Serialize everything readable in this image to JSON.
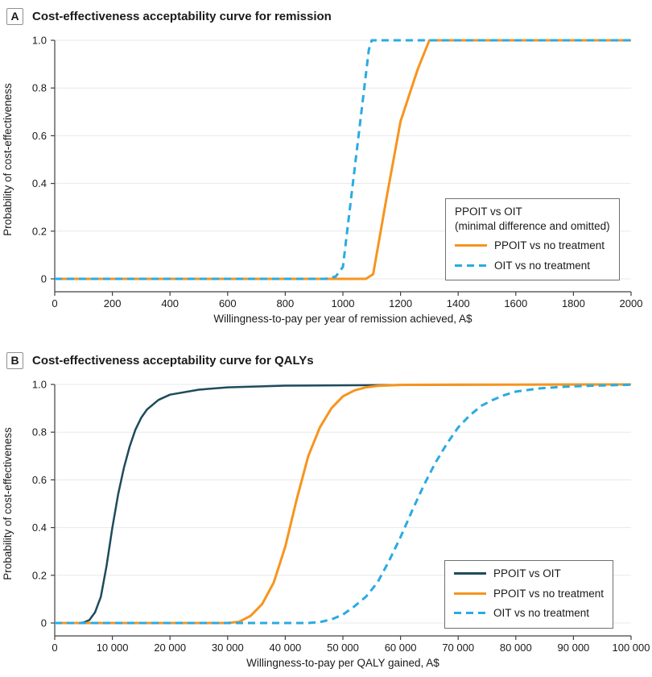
{
  "colors": {
    "orange": "#F7941E",
    "light_blue": "#29ABE2",
    "dark_navy": "#1E4B5C",
    "grid": "#E8E8E8",
    "axis": "#404040",
    "text": "#1A1A1A",
    "legend_border": "#707070",
    "panel_box_border": "#909090"
  },
  "chart_data": [
    {
      "type": "line",
      "panel_label": "A",
      "title": "Cost-effectiveness acceptability curve for remission",
      "xlabel": "Willingness-to-pay per year of remission achieved, A$",
      "ylabel": "Probability of cost-effectiveness",
      "xlim": [
        0,
        2000
      ],
      "ylim": [
        0,
        1.0
      ],
      "grid": true,
      "x_ticks": [
        0,
        200,
        400,
        600,
        800,
        1000,
        1200,
        1400,
        1600,
        1800,
        2000
      ],
      "x_tick_labels": [
        "0",
        "200",
        "400",
        "600",
        "800",
        "1000",
        "1200",
        "1400",
        "1600",
        "1800",
        "2000"
      ],
      "y_ticks": [
        0,
        0.2,
        0.4,
        0.6,
        0.8,
        1.0
      ],
      "y_tick_labels": [
        "0",
        "0.2",
        "0.4",
        "0.6",
        "0.8",
        "1.0"
      ],
      "legend": {
        "position": "right-center",
        "header_lines": [
          "PPOIT vs OIT",
          "(minimal difference and omitted)"
        ],
        "entries": [
          {
            "label": "PPOIT vs no treatment",
            "color": "#F7941E",
            "dash": false
          },
          {
            "label": "OIT vs no treatment",
            "color": "#29ABE2",
            "dash": true
          }
        ]
      },
      "series": [
        {
          "name": "PPOIT vs no treatment",
          "color": "#F7941E",
          "dash": false,
          "width": 3,
          "points": [
            [
              0,
              0
            ],
            [
              1000,
              0
            ],
            [
              1080,
              0
            ],
            [
              1105,
              0.02
            ],
            [
              1150,
              0.33
            ],
            [
              1200,
              0.66
            ],
            [
              1260,
              0.88
            ],
            [
              1300,
              1.0
            ],
            [
              2000,
              1.0
            ]
          ]
        },
        {
          "name": "OIT vs no treatment",
          "color": "#29ABE2",
          "dash": true,
          "width": 3,
          "points": [
            [
              0,
              0
            ],
            [
              940,
              0
            ],
            [
              975,
              0.01
            ],
            [
              1000,
              0.05
            ],
            [
              1090,
              0.96
            ],
            [
              1100,
              1.0
            ],
            [
              2000,
              1.0
            ]
          ]
        }
      ]
    },
    {
      "type": "line",
      "panel_label": "B",
      "title": "Cost-effectiveness acceptability curve for QALYs",
      "xlabel": "Willingness-to-pay per QALY gained, A$",
      "ylabel": "Probability of cost-effectiveness",
      "xlim": [
        0,
        100000
      ],
      "ylim": [
        0,
        1.0
      ],
      "grid": true,
      "x_ticks": [
        0,
        10000,
        20000,
        30000,
        40000,
        50000,
        60000,
        70000,
        80000,
        90000,
        100000
      ],
      "x_tick_labels": [
        "0",
        "10 000",
        "20 000",
        "30 000",
        "40 000",
        "50 000",
        "60 000",
        "70 000",
        "80 000",
        "90 000",
        "100 000"
      ],
      "y_ticks": [
        0,
        0.2,
        0.4,
        0.6,
        0.8,
        1.0
      ],
      "y_tick_labels": [
        "0",
        "0.2",
        "0.4",
        "0.6",
        "0.8",
        "1.0"
      ],
      "legend": {
        "position": "right-lower",
        "header_lines": [],
        "entries": [
          {
            "label": "PPOIT vs OIT",
            "color": "#1E4B5C",
            "dash": false
          },
          {
            "label": "PPOIT vs no treatment",
            "color": "#F7941E",
            "dash": false
          },
          {
            "label": "OIT vs no treatment",
            "color": "#29ABE2",
            "dash": true
          }
        ]
      },
      "series": [
        {
          "name": "PPOIT vs OIT",
          "color": "#1E4B5C",
          "dash": false,
          "width": 2.5,
          "points": [
            [
              0,
              0
            ],
            [
              4000,
              0
            ],
            [
              5000,
              0.002
            ],
            [
              6000,
              0.012
            ],
            [
              7000,
              0.045
            ],
            [
              8000,
              0.11
            ],
            [
              9000,
              0.24
            ],
            [
              10000,
              0.4
            ],
            [
              11000,
              0.54
            ],
            [
              12000,
              0.65
            ],
            [
              13000,
              0.74
            ],
            [
              14000,
              0.81
            ],
            [
              15000,
              0.86
            ],
            [
              16000,
              0.895
            ],
            [
              18000,
              0.935
            ],
            [
              20000,
              0.957
            ],
            [
              25000,
              0.978
            ],
            [
              30000,
              0.988
            ],
            [
              40000,
              0.995
            ],
            [
              60000,
              0.998
            ],
            [
              100000,
              1.0
            ]
          ]
        },
        {
          "name": "PPOIT vs no treatment",
          "color": "#F7941E",
          "dash": false,
          "width": 3,
          "points": [
            [
              0,
              0
            ],
            [
              30000,
              0
            ],
            [
              32000,
              0.005
            ],
            [
              34000,
              0.03
            ],
            [
              36000,
              0.08
            ],
            [
              38000,
              0.17
            ],
            [
              40000,
              0.32
            ],
            [
              42000,
              0.52
            ],
            [
              44000,
              0.7
            ],
            [
              46000,
              0.82
            ],
            [
              48000,
              0.9
            ],
            [
              50000,
              0.95
            ],
            [
              52000,
              0.975
            ],
            [
              54000,
              0.988
            ],
            [
              56000,
              0.994
            ],
            [
              60000,
              0.998
            ],
            [
              70000,
              0.999
            ],
            [
              100000,
              1.0
            ]
          ]
        },
        {
          "name": "OIT vs no treatment",
          "color": "#29ABE2",
          "dash": true,
          "width": 3,
          "points": [
            [
              0,
              0
            ],
            [
              44000,
              0
            ],
            [
              46000,
              0.004
            ],
            [
              48000,
              0.015
            ],
            [
              50000,
              0.035
            ],
            [
              52000,
              0.07
            ],
            [
              54000,
              0.11
            ],
            [
              56000,
              0.17
            ],
            [
              58000,
              0.26
            ],
            [
              60000,
              0.36
            ],
            [
              62000,
              0.47
            ],
            [
              64000,
              0.575
            ],
            [
              66000,
              0.67
            ],
            [
              68000,
              0.75
            ],
            [
              70000,
              0.82
            ],
            [
              72000,
              0.87
            ],
            [
              74000,
              0.91
            ],
            [
              76000,
              0.935
            ],
            [
              78000,
              0.955
            ],
            [
              80000,
              0.97
            ],
            [
              84000,
              0.983
            ],
            [
              88000,
              0.99
            ],
            [
              92000,
              0.994
            ],
            [
              100000,
              0.999
            ]
          ]
        }
      ]
    }
  ]
}
